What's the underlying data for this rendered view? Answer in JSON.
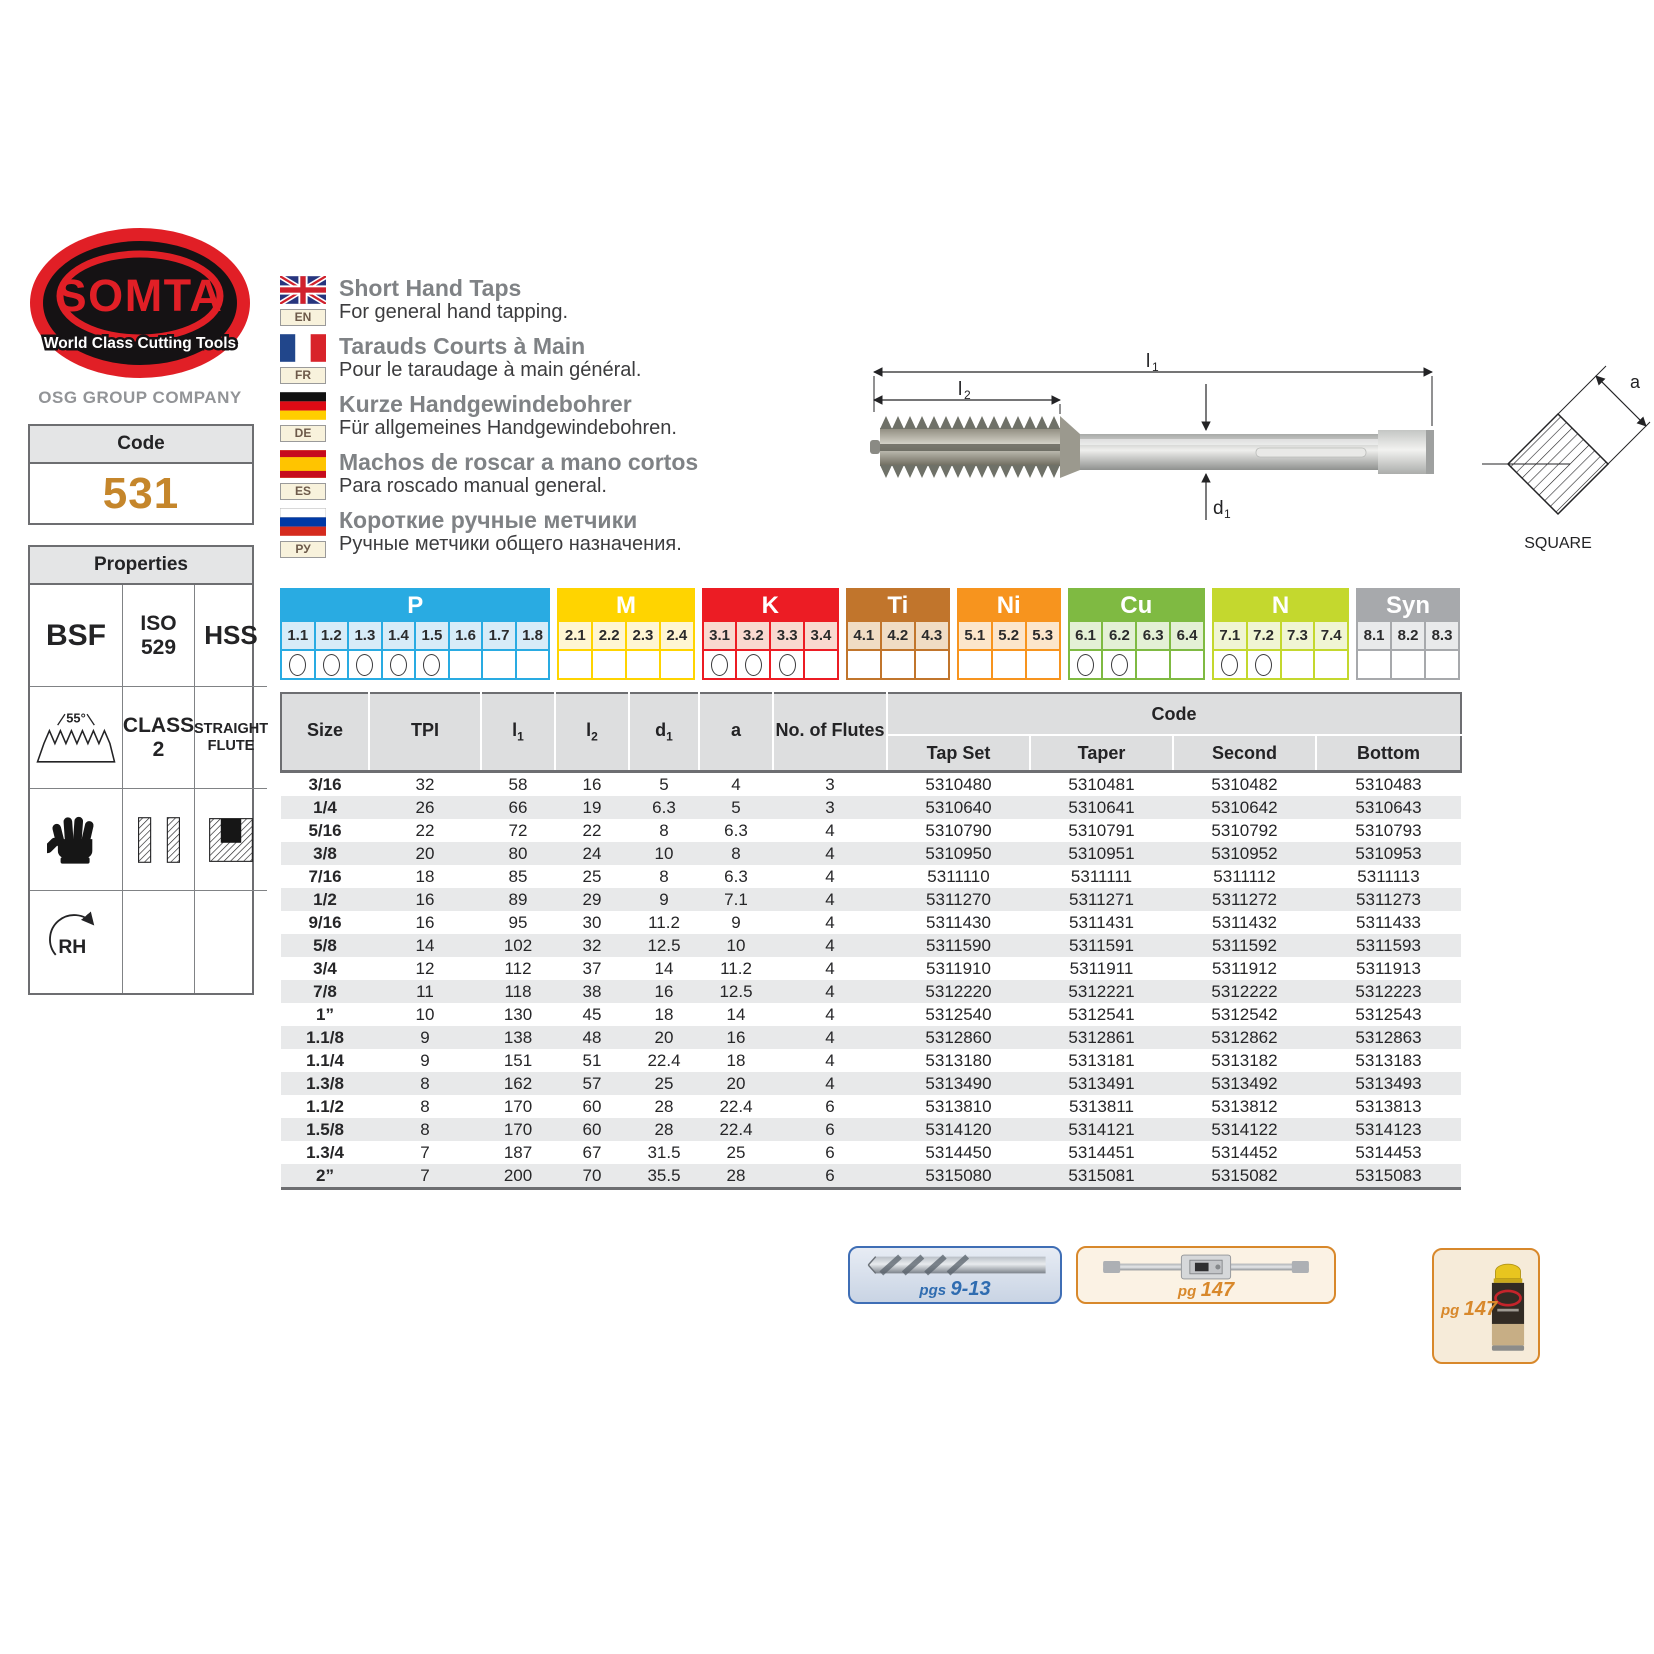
{
  "brand": {
    "name": "SOMTA",
    "tagline": "World Class Cutting Tools",
    "group": "OSG GROUP COMPANY",
    "logo_red": "#E11F26"
  },
  "code_box": {
    "label": "Code",
    "value": "531",
    "value_color": "#C5862B"
  },
  "properties": {
    "title": "Properties",
    "standard": "BSF",
    "iso": "ISO 529",
    "material": "HSS",
    "thread_angle": "55°",
    "tolerance": "CLASS 2",
    "flute": "STRAIGHT FLUTE",
    "rotation": "RH"
  },
  "languages": [
    {
      "code": "EN",
      "title": "Short Hand Taps",
      "subtitle": "For general hand tapping."
    },
    {
      "code": "FR",
      "title": "Tarauds Courts à Main",
      "subtitle": "Pour le taraudage à main général."
    },
    {
      "code": "DE",
      "title": "Kurze Handgewindebohrer",
      "subtitle": "Für allgemeines Handgewindebohren."
    },
    {
      "code": "ES",
      "title": "Machos de roscar a mano cortos",
      "subtitle": "Para roscado manual general."
    },
    {
      "code": "РУ",
      "title": "Короткие ручные метчики",
      "subtitle": "Ручные метчики общего назначения."
    }
  ],
  "diagram": {
    "l1": {
      "base": "l",
      "sub": "1"
    },
    "l2": {
      "base": "l",
      "sub": "2"
    },
    "d1": {
      "base": "d",
      "sub": "1"
    },
    "a_label": "a",
    "section_label": "SQUARE"
  },
  "materials": {
    "groups": [
      {
        "name": "P",
        "color": "#29ABE2",
        "tint": "#D7ECF8",
        "cells": [
          "1.1",
          "1.2",
          "1.3",
          "1.4",
          "1.5",
          "1.6",
          "1.7",
          "1.8"
        ],
        "marked": [
          "1.1",
          "1.2",
          "1.3",
          "1.4",
          "1.5"
        ]
      },
      {
        "name": "M",
        "color": "#FFD400",
        "tint": "#FFF6D2",
        "cells": [
          "2.1",
          "2.2",
          "2.3",
          "2.4"
        ],
        "marked": []
      },
      {
        "name": "K",
        "color": "#EC1C24",
        "tint": "#F9D9D0",
        "cells": [
          "3.1",
          "3.2",
          "3.3",
          "3.4"
        ],
        "marked": [
          "3.1",
          "3.2",
          "3.3"
        ]
      },
      {
        "name": "Ti",
        "color": "#C1752C",
        "tint": "#F0DCC4",
        "cells": [
          "4.1",
          "4.2",
          "4.3"
        ],
        "marked": []
      },
      {
        "name": "Ni",
        "color": "#F7941E",
        "tint": "#FCE6CB",
        "cells": [
          "5.1",
          "5.2",
          "5.3"
        ],
        "marked": []
      },
      {
        "name": "Cu",
        "color": "#7FBA42",
        "tint": "#E4F0D5",
        "cells": [
          "6.1",
          "6.2",
          "6.3",
          "6.4"
        ],
        "marked": [
          "6.1",
          "6.2"
        ]
      },
      {
        "name": "N",
        "color": "#C4D82E",
        "tint": "#F0F5D3",
        "cells": [
          "7.1",
          "7.2",
          "7.3",
          "7.4"
        ],
        "marked": [
          "7.1",
          "7.2"
        ]
      },
      {
        "name": "Syn",
        "color": "#A7A9AC",
        "tint": "#E9EAEB",
        "cells": [
          "8.1",
          "8.2",
          "8.3"
        ],
        "marked": []
      }
    ]
  },
  "table": {
    "col_headers": [
      {
        "base": "Size",
        "sub": ""
      },
      {
        "base": "TPI",
        "sub": ""
      },
      {
        "base": "l",
        "sub": "1"
      },
      {
        "base": "l",
        "sub": "2"
      },
      {
        "base": "d",
        "sub": "1"
      },
      {
        "base": "a",
        "sub": ""
      },
      {
        "base": "No. of Flutes",
        "sub": ""
      }
    ],
    "code_group_header": "Code",
    "code_headers": [
      "Tap Set",
      "Taper",
      "Second",
      "Bottom"
    ],
    "rows": [
      [
        "3/16",
        "32",
        "58",
        "16",
        "5",
        "4",
        "3",
        "5310480",
        "5310481",
        "5310482",
        "5310483"
      ],
      [
        "1/4",
        "26",
        "66",
        "19",
        "6.3",
        "5",
        "3",
        "5310640",
        "5310641",
        "5310642",
        "5310643"
      ],
      [
        "5/16",
        "22",
        "72",
        "22",
        "8",
        "6.3",
        "4",
        "5310790",
        "5310791",
        "5310792",
        "5310793"
      ],
      [
        "3/8",
        "20",
        "80",
        "24",
        "10",
        "8",
        "4",
        "5310950",
        "5310951",
        "5310952",
        "5310953"
      ],
      [
        "7/16",
        "18",
        "85",
        "25",
        "8",
        "6.3",
        "4",
        "5311110",
        "5311111",
        "5311112",
        "5311113"
      ],
      [
        "1/2",
        "16",
        "89",
        "29",
        "9",
        "7.1",
        "4",
        "5311270",
        "5311271",
        "5311272",
        "5311273"
      ],
      [
        "9/16",
        "16",
        "95",
        "30",
        "11.2",
        "9",
        "4",
        "5311430",
        "5311431",
        "5311432",
        "5311433"
      ],
      [
        "5/8",
        "14",
        "102",
        "32",
        "12.5",
        "10",
        "4",
        "5311590",
        "5311591",
        "5311592",
        "5311593"
      ],
      [
        "3/4",
        "12",
        "112",
        "37",
        "14",
        "11.2",
        "4",
        "5311910",
        "5311911",
        "5311912",
        "5311913"
      ],
      [
        "7/8",
        "11",
        "118",
        "38",
        "16",
        "12.5",
        "4",
        "5312220",
        "5312221",
        "5312222",
        "5312223"
      ],
      [
        "1”",
        "10",
        "130",
        "45",
        "18",
        "14",
        "4",
        "5312540",
        "5312541",
        "5312542",
        "5312543"
      ],
      [
        "1.1/8",
        "9",
        "138",
        "48",
        "20",
        "16",
        "4",
        "5312860",
        "5312861",
        "5312862",
        "5312863"
      ],
      [
        "1.1/4",
        "9",
        "151",
        "51",
        "22.4",
        "18",
        "4",
        "5313180",
        "5313181",
        "5313182",
        "5313183"
      ],
      [
        "1.3/8",
        "8",
        "162",
        "57",
        "25",
        "20",
        "4",
        "5313490",
        "5313491",
        "5313492",
        "5313493"
      ],
      [
        "1.1/2",
        "8",
        "170",
        "60",
        "28",
        "22.4",
        "6",
        "5313810",
        "5313811",
        "5313812",
        "5313813"
      ],
      [
        "1.5/8",
        "8",
        "170",
        "60",
        "28",
        "22.4",
        "6",
        "5314120",
        "5314121",
        "5314122",
        "5314123"
      ],
      [
        "1.3/4",
        "7",
        "187",
        "67",
        "31.5",
        "25",
        "6",
        "5314450",
        "5314451",
        "5314452",
        "5314453"
      ],
      [
        "2”",
        "7",
        "200",
        "70",
        "35.5",
        "28",
        "6",
        "5315080",
        "5315081",
        "5315082",
        "5315083"
      ]
    ]
  },
  "footer": {
    "drill": {
      "ref_prefix": "pgs",
      "ref": "9-13",
      "accent": "#2F6CB0"
    },
    "wrench": {
      "ref_prefix": "pg",
      "ref": "147",
      "accent": "#D8882B"
    },
    "spray": {
      "ref_prefix": "pg",
      "ref": "147",
      "accent": "#D8882B"
    }
  }
}
